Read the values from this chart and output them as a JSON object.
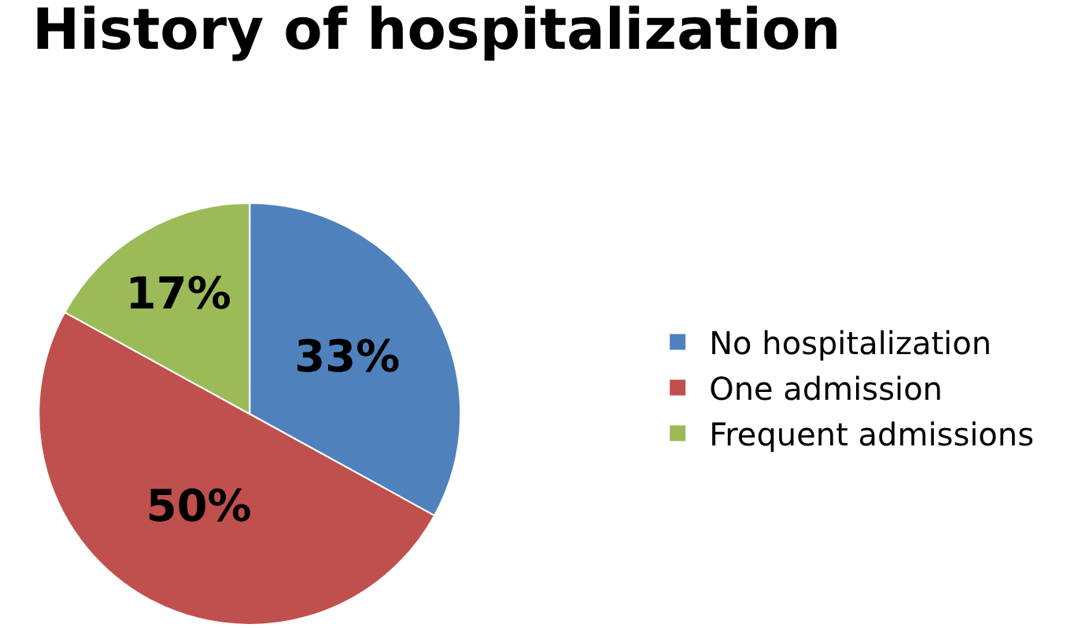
{
  "chart_data": {
    "type": "pie",
    "title": "History of hospitalization",
    "categories": [
      "No hospitalization",
      "One admission",
      "Frequent admissions"
    ],
    "values": [
      33,
      50,
      17
    ],
    "value_labels": [
      "33%",
      "50%",
      "17%"
    ],
    "colors": [
      "#4f81bd",
      "#c0504d",
      "#9bbb59"
    ],
    "legend": "right"
  }
}
